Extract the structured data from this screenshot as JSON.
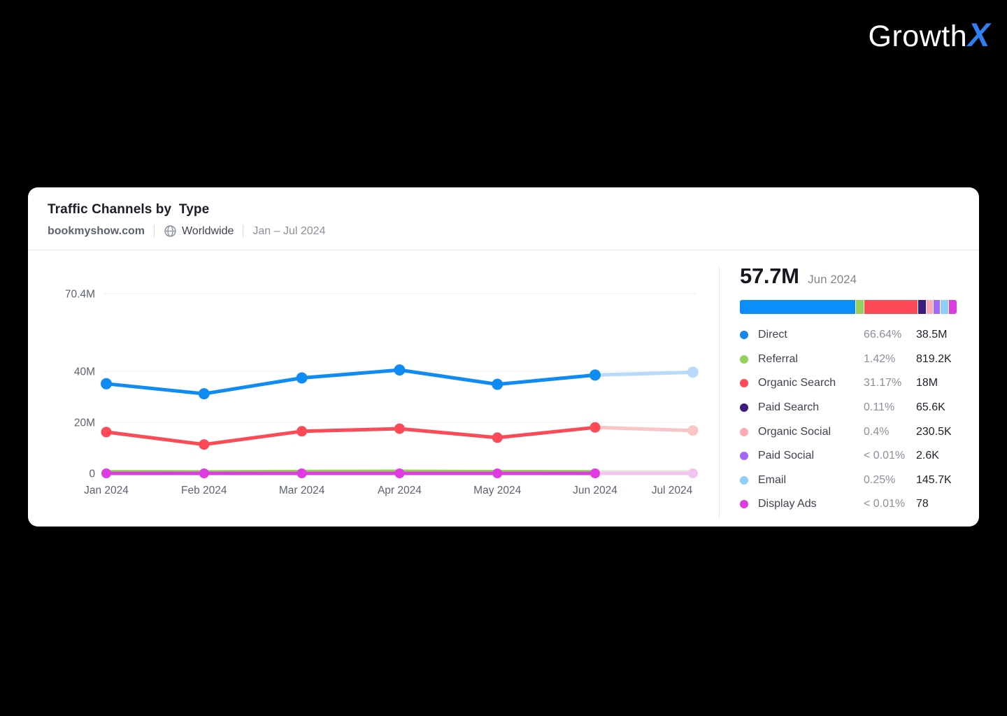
{
  "logo": {
    "text_main": "Growth",
    "text_accent": "X",
    "accent_color": "#2e7ff2"
  },
  "card": {
    "title": "Traffic Channels by  Type",
    "domain": "bookmyshow.com",
    "scope": "Worldwide",
    "date_range": "Jan – Jul 2024"
  },
  "summary": {
    "total": "57.7M",
    "period": "Jun 2024"
  },
  "bar_segments": [
    {
      "id": "direct",
      "color": "#0b8ef8",
      "width_pct": 54.5
    },
    {
      "id": "referral",
      "color": "#94d05a",
      "width_pct": 3.6
    },
    {
      "id": "organic-search",
      "color": "#fc4a57",
      "width_pct": 25.2
    },
    {
      "id": "paid-search",
      "color": "#3c1d7d",
      "width_pct": 3.4
    },
    {
      "id": "organic-social",
      "color": "#fdaab6",
      "width_pct": 2.9
    },
    {
      "id": "paid-social",
      "color": "#a468f8",
      "width_pct": 3.3
    },
    {
      "id": "email",
      "color": "#90cdfb",
      "width_pct": 3.4
    },
    {
      "id": "display-ads",
      "color": "#de3ce2",
      "width_pct": 3.7
    }
  ],
  "legend": [
    {
      "id": "direct",
      "label": "Direct",
      "percent": "66.64%",
      "value": "38.5M",
      "color": "#1787f0"
    },
    {
      "id": "referral",
      "label": "Referral",
      "percent": "1.42%",
      "value": "819.2K",
      "color": "#94d05a"
    },
    {
      "id": "organic-search",
      "label": "Organic Search",
      "percent": "31.17%",
      "value": "18M",
      "color": "#fc4a57"
    },
    {
      "id": "paid-search",
      "label": "Paid Search",
      "percent": "0.11%",
      "value": "65.6K",
      "color": "#3c1d7d"
    },
    {
      "id": "organic-social",
      "label": "Organic Social",
      "percent": "0.4%",
      "value": "230.5K",
      "color": "#fdaab6"
    },
    {
      "id": "paid-social",
      "label": "Paid Social",
      "percent": "< 0.01%",
      "value": "2.6K",
      "color": "#a468f8"
    },
    {
      "id": "email",
      "label": "Email",
      "percent": "0.25%",
      "value": "145.7K",
      "color": "#90cdfb"
    },
    {
      "id": "display-ads",
      "label": "Display Ads",
      "percent": "< 0.01%",
      "value": "78",
      "color": "#de3ce2"
    }
  ],
  "chart_data": {
    "type": "line",
    "title": "Traffic Channels by Type",
    "x": [
      "Jan 2024",
      "Feb 2024",
      "Mar 2024",
      "Apr 2024",
      "May 2024",
      "Jun 2024",
      "Jul 2024"
    ],
    "y_unit": "M visits",
    "ylim": [
      0,
      70.4
    ],
    "y_ticks": [
      {
        "value": 70.4,
        "label": "70.4M"
      },
      {
        "value": 40,
        "label": "40M"
      },
      {
        "value": 20,
        "label": "20M"
      },
      {
        "value": 0,
        "label": "0"
      }
    ],
    "grid": true,
    "legend_position": "right",
    "forecast_from_index": 5,
    "series": [
      {
        "id": "paid-search",
        "name": "Paid Search",
        "color": "#3c1d7d",
        "forecast_color": "#d9d3e6",
        "width": 3,
        "dot_r": 0,
        "values": [
          0.07,
          0.07,
          0.07,
          0.07,
          0.07,
          0.066,
          0.07
        ]
      },
      {
        "id": "organic-social",
        "name": "Organic Social",
        "color": "#fdaab6",
        "forecast_color": "#fde4e8",
        "width": 3,
        "dot_r": 0,
        "values": [
          0.23,
          0.23,
          0.23,
          0.23,
          0.23,
          0.23,
          0.23
        ]
      },
      {
        "id": "paid-social",
        "name": "Paid Social",
        "color": "#a468f8",
        "forecast_color": "#e4d8fb",
        "width": 3,
        "dot_r": 0,
        "values": [
          0.003,
          0.003,
          0.003,
          0.003,
          0.003,
          0.003,
          0.003
        ]
      },
      {
        "id": "email",
        "name": "Email",
        "color": "#90cdfb",
        "forecast_color": "#ddeefd",
        "width": 3,
        "dot_r": 0,
        "values": [
          0.15,
          0.15,
          0.15,
          0.15,
          0.15,
          0.146,
          0.15
        ]
      },
      {
        "id": "referral",
        "name": "Referral",
        "color": "#94d05a",
        "forecast_color": "#e4eadf",
        "width": 3.5,
        "dot_r": 0,
        "values": [
          0.85,
          0.8,
          0.95,
          1.0,
          0.9,
          0.82,
          0.85
        ]
      },
      {
        "id": "display-ads",
        "name": "Display Ads",
        "color": "#de3ce2",
        "forecast_color": "#f3c3ef",
        "width": 5,
        "dot_r": 7,
        "values": [
          0.0001,
          0.0001,
          0.0001,
          0.0001,
          0.0001,
          0.0001,
          0.0001
        ]
      },
      {
        "id": "organic-search",
        "name": "Organic Search",
        "color": "#fc4a57",
        "forecast_color": "#fbc5c8",
        "width": 5,
        "dot_r": 7.5,
        "values": [
          16.2,
          11.3,
          16.5,
          17.5,
          14.0,
          18.0,
          16.8
        ]
      },
      {
        "id": "direct",
        "name": "Direct",
        "color": "#0f8bf4",
        "forecast_color": "#b7d9fc",
        "width": 5,
        "dot_r": 8,
        "values": [
          35.1,
          31.2,
          37.4,
          40.5,
          34.9,
          38.5,
          39.6
        ]
      }
    ]
  }
}
